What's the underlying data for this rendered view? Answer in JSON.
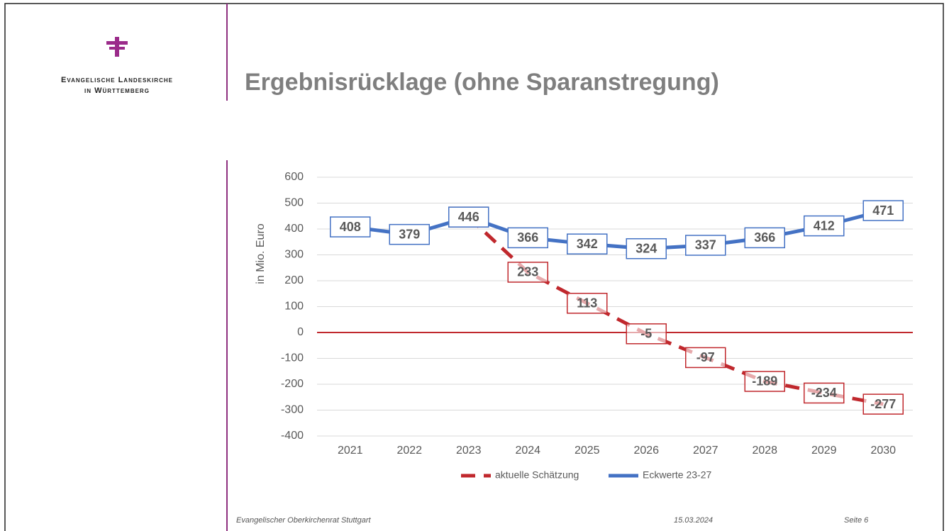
{
  "header": {
    "org_line1": "Evangelische Landeskirche",
    "org_line2": "in Württemberg",
    "title": "Ergebnisrücklage (ohne Sparanstregung)"
  },
  "chart_data": {
    "type": "line",
    "ylabel": "in Mio. Euro",
    "categories": [
      "2021",
      "2022",
      "2023",
      "2024",
      "2025",
      "2026",
      "2027",
      "2028",
      "2029",
      "2030"
    ],
    "series": [
      {
        "name": "aktuelle Schätzung",
        "color": "#c0282d",
        "dashed": true,
        "values": [
          null,
          null,
          446,
          233,
          113,
          -5,
          -97,
          -189,
          -234,
          -277
        ]
      },
      {
        "name": "Eckwerte 23-27",
        "color": "#4472c4",
        "dashed": false,
        "values": [
          408,
          379,
          446,
          366,
          342,
          324,
          337,
          366,
          412,
          471
        ]
      }
    ],
    "ylim": [
      -400,
      600
    ],
    "yticks": [
      -400,
      -300,
      -200,
      -100,
      0,
      100,
      200,
      300,
      400,
      500,
      600
    ],
    "grid": true,
    "legend": "bottom"
  },
  "footer": {
    "left": "Evangelischer Oberkirchenrat Stuttgart",
    "date": "15.03.2024",
    "page": "Seite 6"
  }
}
